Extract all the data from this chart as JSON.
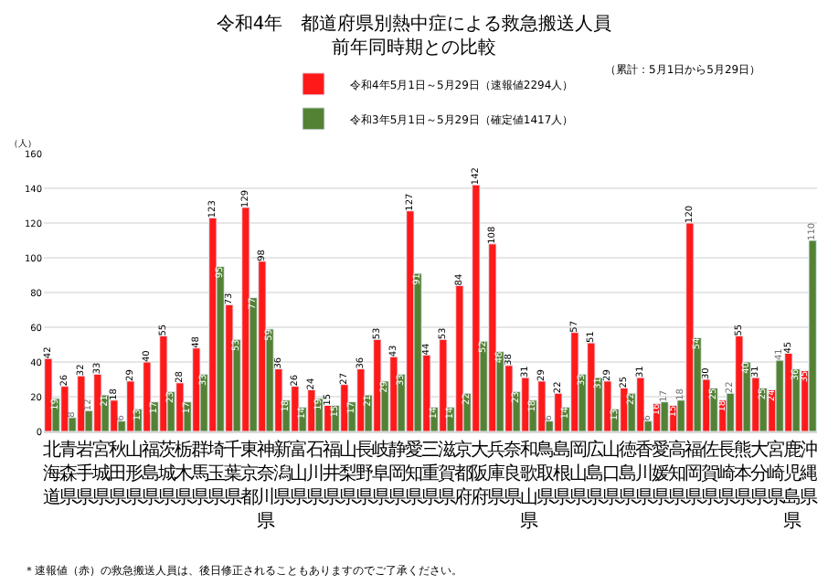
{
  "chart_data": {
    "type": "bar",
    "title": "令和4年　都道府県別熱中症による救急搬送人員",
    "subtitle": "前年同時期との比較",
    "ylabel": "（人）",
    "categories": [
      "北海道",
      "青森県",
      "岩手県",
      "宮城県",
      "秋田県",
      "山形県",
      "福島県",
      "茨城県",
      "栃木県",
      "群馬県",
      "埼玉県",
      "千葉県",
      "東京都",
      "神奈川県",
      "新潟県",
      "富山県",
      "石川県",
      "福井県",
      "山梨県",
      "長野県",
      "岐阜県",
      "静岡県",
      "愛知県",
      "三重県",
      "滋賀県",
      "京都府",
      "大阪府",
      "兵庫県",
      "奈良県",
      "和歌山県",
      "鳥取県",
      "島根県",
      "岡山県",
      "広島県",
      "山口県",
      "徳島県",
      "香川県",
      "愛媛県",
      "高知県",
      "福岡県",
      "佐賀県",
      "長崎県",
      "熊本県",
      "大分県",
      "宮崎県",
      "鹿児島県",
      "沖縄県"
    ],
    "series": [
      {
        "name": "令和4年5月1日～5月29日（速報値2294人）",
        "color": "#ff1a1a",
        "values": [
          42,
          26,
          32,
          33,
          18,
          29,
          40,
          55,
          28,
          48,
          123,
          73,
          129,
          98,
          36,
          26,
          24,
          15,
          27,
          36,
          53,
          43,
          127,
          44,
          53,
          84,
          142,
          108,
          38,
          31,
          29,
          22,
          57,
          51,
          29,
          25,
          31,
          16,
          15,
          120,
          30,
          18,
          55,
          31,
          24,
          45,
          35
        ]
      },
      {
        "name": "令和3年5月1日～5月29日（確定値1417人）",
        "color": "#548235",
        "values": [
          19,
          8,
          12,
          21,
          6,
          13,
          17,
          23,
          17,
          33,
          95,
          53,
          77,
          59,
          18,
          14,
          19,
          15,
          17,
          21,
          29,
          33,
          91,
          14,
          14,
          22,
          52,
          46,
          23,
          18,
          6,
          14,
          33,
          31,
          13,
          22,
          6,
          17,
          18,
          54,
          25,
          22,
          40,
          25,
          41,
          36,
          110
        ]
      }
    ],
    "ylim": [
      0,
      160
    ],
    "yticks": [
      0,
      20,
      40,
      60,
      80,
      100,
      120,
      140,
      160
    ],
    "grid": "y",
    "legend": "top",
    "data_labels": true,
    "annotations": [
      "（累計：5月1日から5月29日）",
      "＊速報値（赤）の救急搬送人員は、後日修正されることもありますのでご了承ください。"
    ]
  }
}
